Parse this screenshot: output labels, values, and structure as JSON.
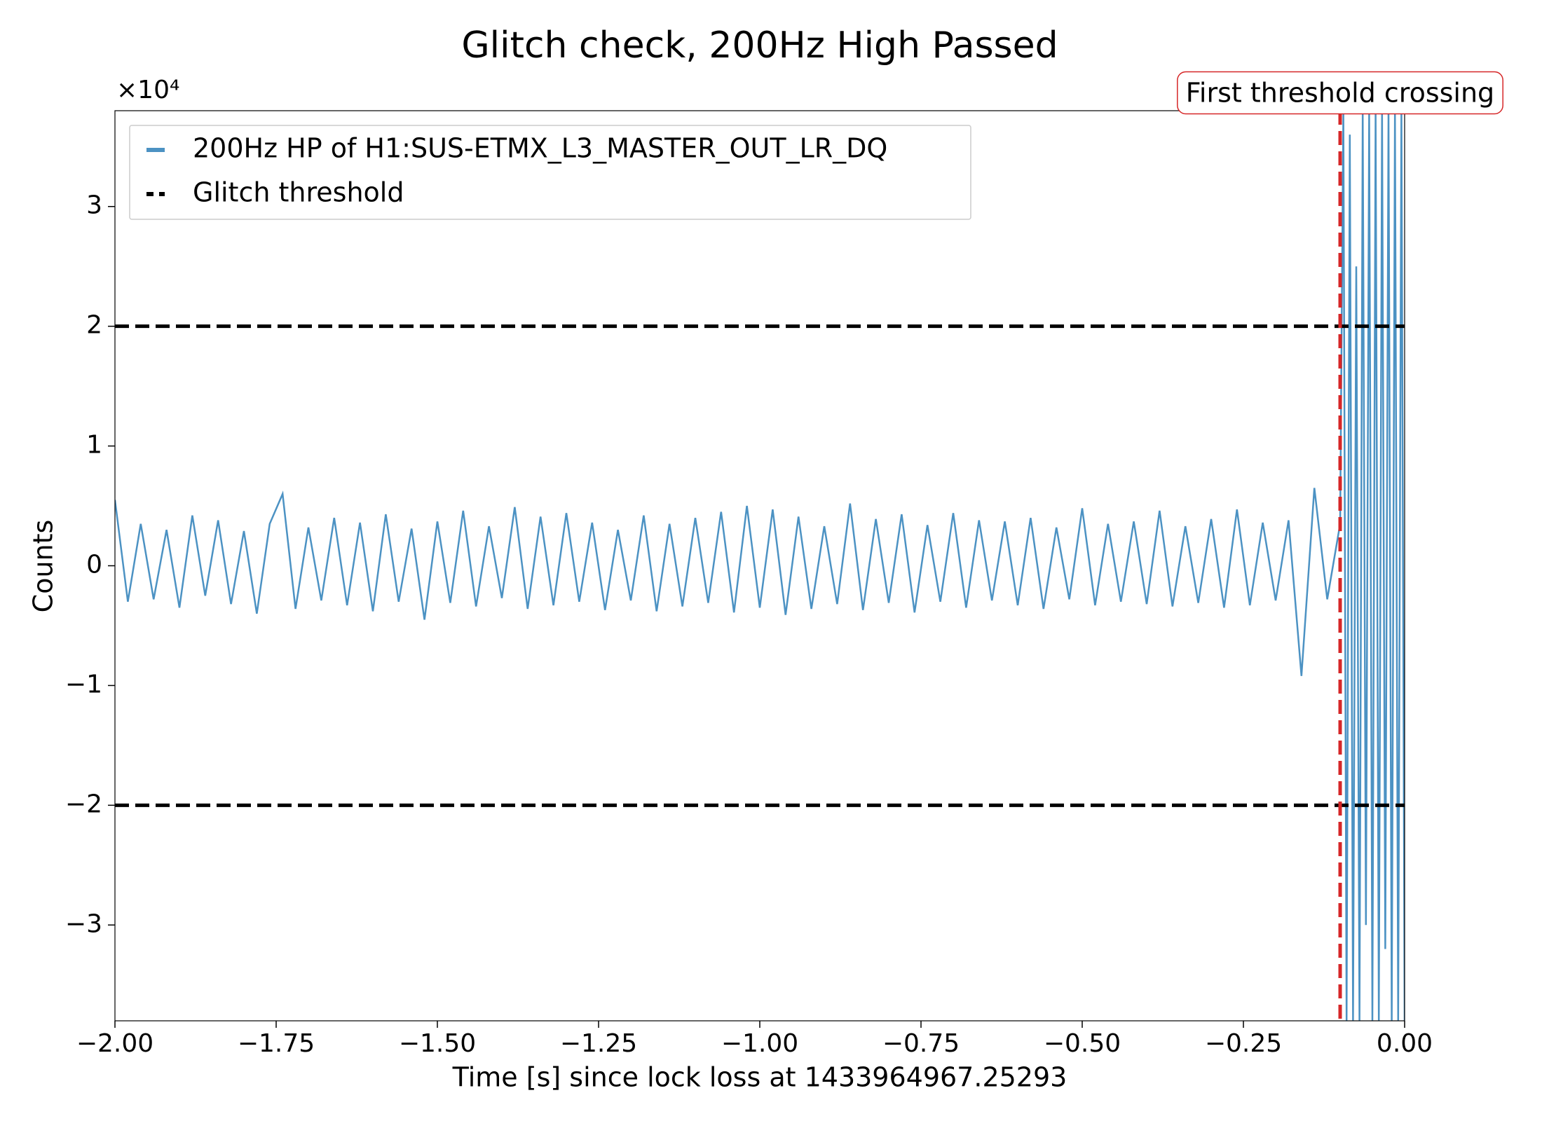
{
  "chart_data": {
    "type": "line",
    "title": "Glitch check, 200Hz High Passed",
    "xlabel": "Time [s] since lock loss at 1433964967.25293",
    "ylabel": "Counts",
    "y_offset_label": "×10⁴",
    "x": [
      -2,
      -1.98,
      -1.96,
      -1.94,
      -1.92,
      -1.9,
      -1.88,
      -1.86,
      -1.84,
      -1.82,
      -1.8,
      -1.78,
      -1.76,
      -1.74,
      -1.72,
      -1.7,
      -1.68,
      -1.66,
      -1.64,
      -1.62,
      -1.6,
      -1.58,
      -1.56,
      -1.54,
      -1.52,
      -1.5,
      -1.48,
      -1.46,
      -1.44,
      -1.42,
      -1.4,
      -1.38,
      -1.36,
      -1.34,
      -1.32,
      -1.3,
      -1.28,
      -1.26,
      -1.24,
      -1.22,
      -1.2,
      -1.18,
      -1.16,
      -1.14,
      -1.12,
      -1.1,
      -1.08,
      -1.06,
      -1.04,
      -1.02,
      -1,
      -0.98,
      -0.96,
      -0.94,
      -0.92,
      -0.9,
      -0.88,
      -0.86,
      -0.84,
      -0.82,
      -0.8,
      -0.78,
      -0.76,
      -0.74,
      -0.72,
      -0.7,
      -0.68,
      -0.66,
      -0.64,
      -0.62,
      -0.6,
      -0.58,
      -0.56,
      -0.54,
      -0.52,
      -0.5,
      -0.48,
      -0.46,
      -0.44,
      -0.42,
      -0.4,
      -0.38,
      -0.36,
      -0.34,
      -0.32,
      -0.3,
      -0.28,
      -0.26,
      -0.24,
      -0.22,
      -0.2,
      -0.18,
      -0.16,
      -0.14,
      -0.12,
      -0.1,
      -0.095,
      -0.09,
      -0.085,
      -0.08,
      -0.075,
      -0.07,
      -0.065,
      -0.06,
      -0.055,
      -0.05,
      -0.045,
      -0.04,
      -0.035,
      -0.03,
      -0.025,
      -0.02,
      -0.015,
      -0.01,
      -0.005,
      0
    ],
    "series": [
      {
        "name": "200Hz HP of H1:SUS-ETMX_L3_MASTER_OUT_LR_DQ",
        "color": "#4c92c3",
        "values": [
          5500,
          -3000,
          3500,
          -2800,
          3000,
          -3500,
          4200,
          -2500,
          3800,
          -3200,
          2900,
          -4000,
          3500,
          6000,
          -3600,
          3200,
          -2900,
          4000,
          -3300,
          3600,
          -3800,
          4300,
          -3000,
          3100,
          -4500,
          3700,
          -3100,
          4600,
          -3400,
          3300,
          -2700,
          4900,
          -3600,
          4100,
          -3300,
          4400,
          -3000,
          3600,
          -3700,
          3000,
          -2900,
          4200,
          -3800,
          3500,
          -3400,
          4000,
          -3100,
          4500,
          -3900,
          5000,
          -3500,
          4700,
          -4100,
          4100,
          -3600,
          3300,
          -3200,
          5200,
          -3700,
          3900,
          -3100,
          4300,
          -3900,
          3400,
          -3000,
          4400,
          -3500,
          3800,
          -2900,
          3700,
          -3300,
          4000,
          -3600,
          3200,
          -2800,
          4800,
          -3300,
          3500,
          -3000,
          3700,
          -3200,
          4600,
          -3400,
          3300,
          -3100,
          3900,
          -3500,
          4700,
          -3300,
          3600,
          -2900,
          3800,
          -9200,
          6500,
          -2800,
          3500,
          38000,
          -38000,
          36000,
          -38000,
          25000,
          -38000,
          38000,
          -30000,
          38000,
          -38000,
          38000,
          -38000,
          38000,
          -32000,
          38000,
          -38000,
          38000,
          -38000,
          38000,
          -38000
        ]
      }
    ],
    "thresholds": {
      "name": "Glitch threshold",
      "color": "#000000",
      "values": [
        20000,
        -20000
      ]
    },
    "annotation": {
      "text": "First threshold crossing",
      "x": -0.1,
      "color": "#d62728"
    },
    "xlim": [
      -2,
      0
    ],
    "ylim": [
      -38000,
      38000
    ],
    "xticks": [
      {
        "value": -2,
        "label": "−2.00"
      },
      {
        "value": -1.75,
        "label": "−1.75"
      },
      {
        "value": -1.5,
        "label": "−1.50"
      },
      {
        "value": -1.25,
        "label": "−1.25"
      },
      {
        "value": -1,
        "label": "−1.00"
      },
      {
        "value": -0.75,
        "label": "−0.75"
      },
      {
        "value": -0.5,
        "label": "−0.50"
      },
      {
        "value": -0.25,
        "label": "−0.25"
      },
      {
        "value": 0,
        "label": "0.00"
      }
    ],
    "yticks": [
      {
        "value": -30000,
        "label": "−3"
      },
      {
        "value": -20000,
        "label": "−2"
      },
      {
        "value": -10000,
        "label": "−1"
      },
      {
        "value": 0,
        "label": "0"
      },
      {
        "value": 10000,
        "label": "1"
      },
      {
        "value": 20000,
        "label": "2"
      },
      {
        "value": 30000,
        "label": "3"
      }
    ],
    "legend": "upper left"
  }
}
